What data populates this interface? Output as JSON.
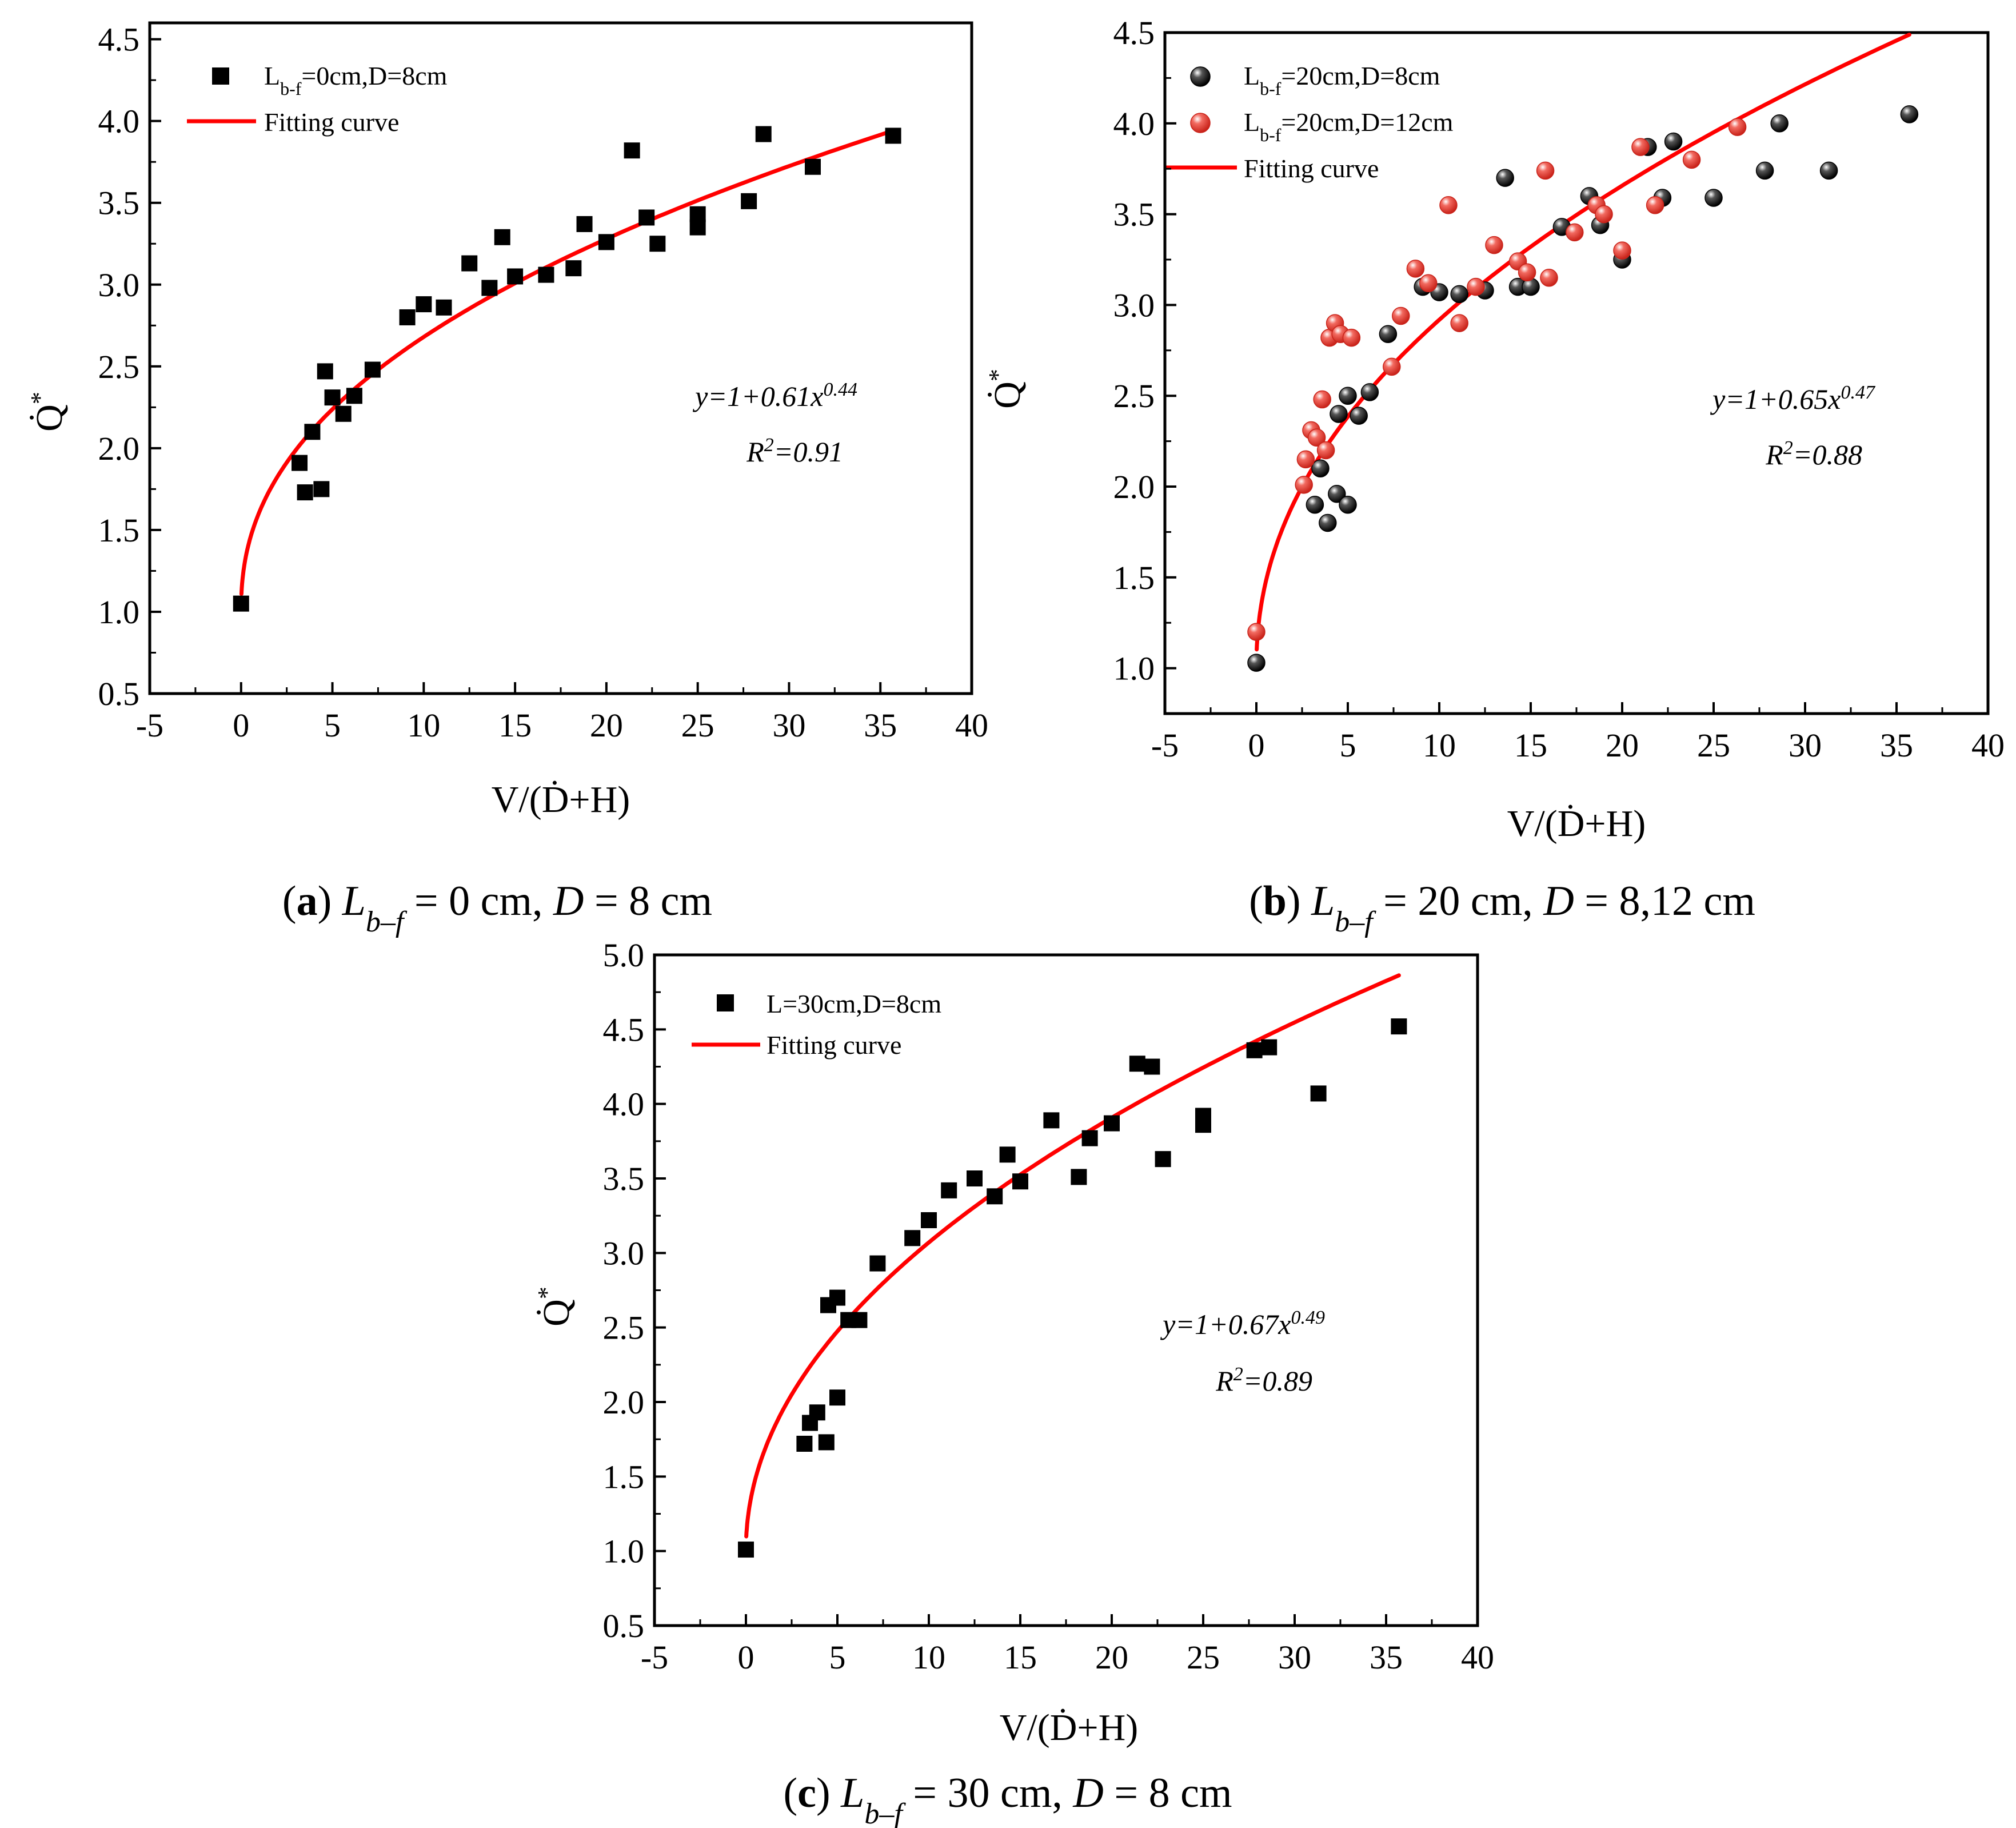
{
  "chart_data": [
    {
      "id": "a",
      "type": "scatter",
      "caption": {
        "label": "a",
        "lhs": "L",
        "sub": "b–f",
        "rest": " = 0 cm, ",
        "d": "D",
        "drest": " = 8 cm"
      },
      "xlabel": "V/(Ḋ+H)",
      "ylabel": "Q̇",
      "ylabel_sup": "*",
      "xlim": [
        -5,
        40
      ],
      "ylim": [
        0.5,
        4.6
      ],
      "xticks": [
        -5,
        0,
        5,
        10,
        15,
        20,
        25,
        30,
        35,
        40
      ],
      "yticks": [
        0.5,
        1.0,
        1.5,
        2.0,
        2.5,
        3.0,
        3.5,
        4.0,
        4.5
      ],
      "ytick_labels": [
        "0.5",
        "1.0",
        "1.5",
        "2.0",
        "2.5",
        "3.0",
        "3.5",
        "4.0",
        "4.5"
      ],
      "series": [
        {
          "name": "L",
          "sub": "b-f",
          "rest": "=0cm,D=8cm",
          "marker": "square",
          "color": "#000000",
          "points": [
            [
              0,
              1.05
            ],
            [
              3.2,
              1.91
            ],
            [
              3.5,
              1.73
            ],
            [
              3.9,
              2.1
            ],
            [
              4.4,
              1.75
            ],
            [
              4.6,
              2.47
            ],
            [
              5.0,
              2.31
            ],
            [
              5.6,
              2.21
            ],
            [
              6.2,
              2.32
            ],
            [
              7.2,
              2.48
            ],
            [
              9.1,
              2.8
            ],
            [
              10.0,
              2.88
            ],
            [
              11.1,
              2.86
            ],
            [
              12.5,
              3.13
            ],
            [
              13.6,
              2.98
            ],
            [
              14.3,
              3.29
            ],
            [
              15.0,
              3.05
            ],
            [
              16.7,
              3.06
            ],
            [
              18.2,
              3.1
            ],
            [
              18.8,
              3.37
            ],
            [
              20.0,
              3.26
            ],
            [
              21.4,
              3.82
            ],
            [
              22.2,
              3.41
            ],
            [
              22.8,
              3.25
            ],
            [
              25.0,
              3.43
            ],
            [
              25.0,
              3.35
            ],
            [
              27.8,
              3.51
            ],
            [
              28.6,
              3.92
            ],
            [
              31.3,
              3.72
            ],
            [
              35.7,
              3.91
            ]
          ]
        }
      ],
      "fit": {
        "name": "Fitting curve",
        "a": 0.61,
        "b": 0.44,
        "color": "#ff0000",
        "x_max": 35.7
      },
      "equation": "y=1+0.61x",
      "equation_exp": "0.44",
      "r2_prefix": "R",
      "r2_value": "=0.91"
    },
    {
      "id": "b",
      "type": "scatter",
      "caption": {
        "label": "b",
        "lhs": "L",
        "sub": "b–f",
        "rest": " = 20 cm, ",
        "d": "D",
        "drest": " = 8,12 cm"
      },
      "xlabel": "V/(Ḋ+H)",
      "ylabel": "Q̇",
      "ylabel_sup": "*",
      "xlim": [
        -5,
        40
      ],
      "ylim": [
        0.75,
        4.5
      ],
      "xticks": [
        -5,
        0,
        5,
        10,
        15,
        20,
        25,
        30,
        35,
        40
      ],
      "yticks": [
        1.0,
        1.5,
        2.0,
        2.5,
        3.0,
        3.5,
        4.0,
        4.5
      ],
      "ytick_labels": [
        "1.0",
        "1.5",
        "2.0",
        "2.5",
        "3.0",
        "3.5",
        "4.0",
        "4.5"
      ],
      "series": [
        {
          "name": "L",
          "sub": "b-f",
          "rest": "=20cm,D=8cm",
          "marker": "sphere",
          "color": "#000000",
          "points": [
            [
              0,
              1.03
            ],
            [
              3.2,
              1.9
            ],
            [
              3.5,
              2.1
            ],
            [
              3.9,
              1.8
            ],
            [
              4.4,
              1.96
            ],
            [
              4.5,
              2.4
            ],
            [
              5.0,
              2.5
            ],
            [
              5.0,
              1.9
            ],
            [
              5.6,
              2.39
            ],
            [
              6.2,
              2.52
            ],
            [
              7.2,
              2.84
            ],
            [
              9.1,
              3.1
            ],
            [
              10.0,
              3.07
            ],
            [
              11.1,
              3.06
            ],
            [
              12.5,
              3.08
            ],
            [
              13.6,
              3.7
            ],
            [
              14.3,
              3.1
            ],
            [
              15.0,
              3.1
            ],
            [
              16.7,
              3.43
            ],
            [
              18.2,
              3.6
            ],
            [
              18.8,
              3.44
            ],
            [
              20.0,
              3.25
            ],
            [
              21.4,
              3.87
            ],
            [
              22.2,
              3.59
            ],
            [
              22.8,
              3.9
            ],
            [
              25.0,
              3.59
            ],
            [
              27.8,
              3.74
            ],
            [
              28.6,
              4.0
            ],
            [
              31.3,
              3.74
            ],
            [
              35.7,
              4.05
            ]
          ]
        },
        {
          "name": "L",
          "sub": "b-f",
          "rest": "=20cm,D=12cm",
          "marker": "sphere",
          "color": "#e8443a",
          "points": [
            [
              0,
              1.2
            ],
            [
              2.6,
              2.01
            ],
            [
              2.7,
              2.15
            ],
            [
              3.0,
              2.31
            ],
            [
              3.3,
              2.27
            ],
            [
              3.6,
              2.48
            ],
            [
              3.8,
              2.2
            ],
            [
              4.0,
              2.82
            ],
            [
              4.3,
              2.9
            ],
            [
              4.6,
              2.84
            ],
            [
              5.2,
              2.82
            ],
            [
              7.4,
              2.66
            ],
            [
              7.9,
              2.94
            ],
            [
              8.7,
              3.2
            ],
            [
              9.4,
              3.12
            ],
            [
              10.5,
              3.55
            ],
            [
              11.1,
              2.9
            ],
            [
              12.0,
              3.1
            ],
            [
              13.0,
              3.33
            ],
            [
              14.3,
              3.24
            ],
            [
              14.8,
              3.18
            ],
            [
              16.0,
              3.15
            ],
            [
              15.8,
              3.74
            ],
            [
              17.4,
              3.4
            ],
            [
              18.6,
              3.55
            ],
            [
              19.0,
              3.5
            ],
            [
              20.0,
              3.3
            ],
            [
              21.0,
              3.87
            ],
            [
              21.8,
              3.55
            ],
            [
              23.8,
              3.8
            ],
            [
              26.3,
              3.98
            ]
          ]
        }
      ],
      "fit": {
        "name": "Fitting curve",
        "a": 0.65,
        "b": 0.47,
        "color": "#ff0000",
        "x_max": 35.7
      },
      "equation": "y=1+0.65x",
      "equation_exp": "0.47",
      "r2_prefix": "R",
      "r2_value": "=0.88"
    },
    {
      "id": "c",
      "type": "scatter",
      "caption": {
        "label": "c",
        "lhs": "L",
        "sub": "b–f",
        "rest": " = 30 cm, ",
        "d": "D",
        "drest": " = 8 cm"
      },
      "xlabel": "V/(Ḋ+H)",
      "ylabel": "Q̇",
      "ylabel_sup": "*",
      "xlim": [
        -5,
        40
      ],
      "ylim": [
        0.5,
        5.0
      ],
      "xticks": [
        -5,
        0,
        5,
        10,
        15,
        20,
        25,
        30,
        35,
        40
      ],
      "yticks": [
        0.5,
        1.0,
        1.5,
        2.0,
        2.5,
        3.0,
        3.5,
        4.0,
        4.5,
        5.0
      ],
      "ytick_labels": [
        "0.5",
        "1.0",
        "1.5",
        "2.0",
        "2.5",
        "3.0",
        "3.5",
        "4.0",
        "4.5",
        "5.0"
      ],
      "series": [
        {
          "name": "L",
          "sub": "",
          "rest": "=30cm,D=8cm",
          "marker": "square",
          "color": "#000000",
          "points": [
            [
              0,
              1.01
            ],
            [
              3.2,
              1.72
            ],
            [
              3.5,
              1.86
            ],
            [
              3.9,
              1.93
            ],
            [
              4.4,
              1.73
            ],
            [
              4.5,
              2.65
            ],
            [
              5.0,
              2.03
            ],
            [
              5.0,
              2.7
            ],
            [
              5.6,
              2.55
            ],
            [
              6.2,
              2.55
            ],
            [
              7.2,
              2.93
            ],
            [
              9.1,
              3.1
            ],
            [
              10.0,
              3.22
            ],
            [
              11.1,
              3.42
            ],
            [
              12.5,
              3.5
            ],
            [
              13.6,
              3.38
            ],
            [
              14.3,
              3.66
            ],
            [
              15.0,
              3.48
            ],
            [
              16.7,
              3.89
            ],
            [
              18.2,
              3.51
            ],
            [
              18.8,
              3.77
            ],
            [
              20.0,
              3.87
            ],
            [
              21.4,
              4.27
            ],
            [
              22.2,
              4.25
            ],
            [
              22.8,
              3.63
            ],
            [
              25.0,
              3.92
            ],
            [
              25.0,
              3.86
            ],
            [
              27.8,
              4.36
            ],
            [
              28.6,
              4.38
            ],
            [
              31.3,
              4.07
            ],
            [
              35.7,
              4.52
            ]
          ]
        }
      ],
      "fit": {
        "name": "Fitting curve",
        "a": 0.67,
        "b": 0.49,
        "color": "#ff0000",
        "x_max": 35.7
      },
      "equation": "y=1+0.67x",
      "equation_exp": "0.49",
      "r2_prefix": "R",
      "r2_value": "=0.89"
    }
  ]
}
